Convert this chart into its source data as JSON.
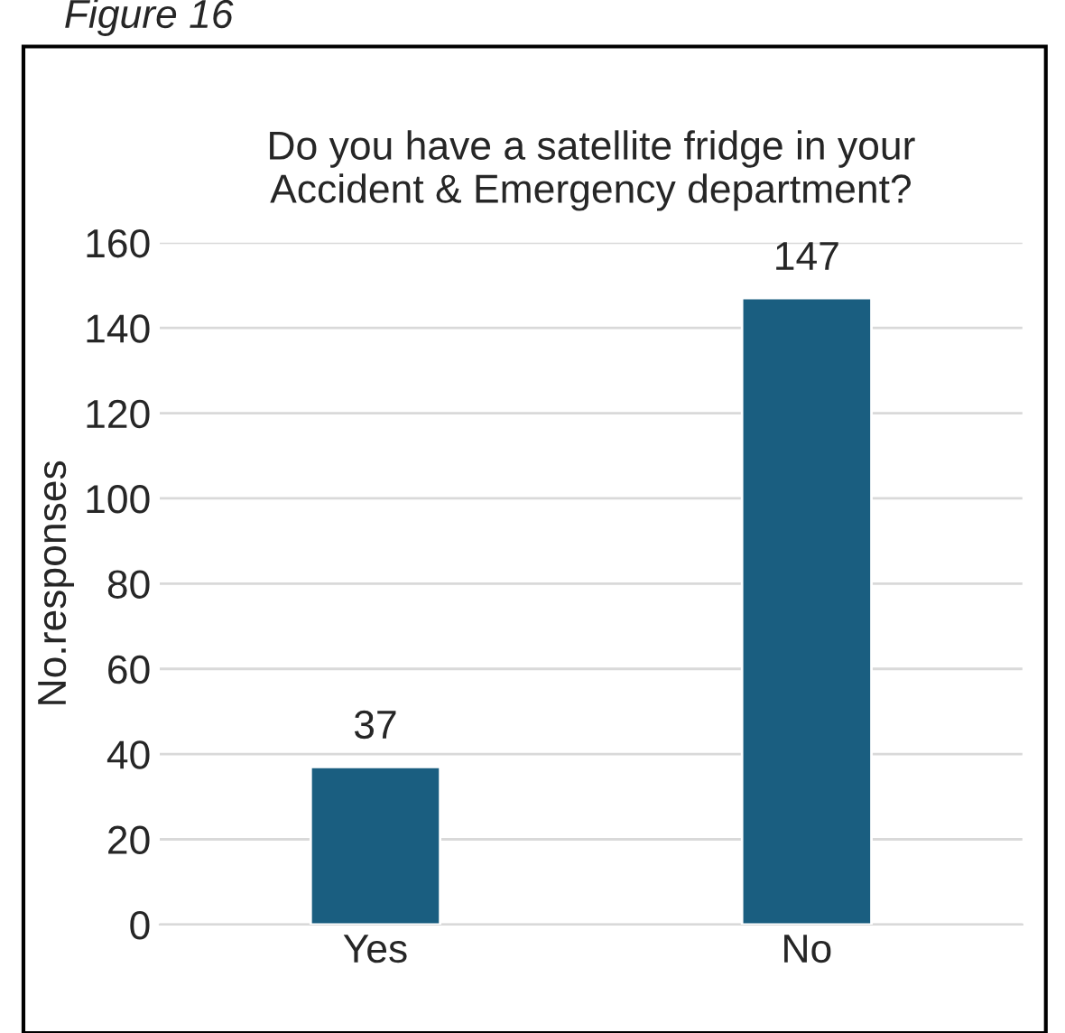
{
  "chart_data": {
    "type": "bar",
    "title": "Do you have a satellite fridge in your\nAccident & Emergency department?",
    "ylabel": "No.responses",
    "categories": [
      "Yes",
      "No"
    ],
    "values": [
      37,
      147
    ],
    "color": "#1a5e80",
    "ylim": [
      0,
      160
    ],
    "yticks": [
      0,
      20,
      40,
      60,
      80,
      100,
      120,
      140,
      160
    ],
    "grid": "y",
    "data_labels": true,
    "annotations": [
      "Figure 16"
    ]
  }
}
